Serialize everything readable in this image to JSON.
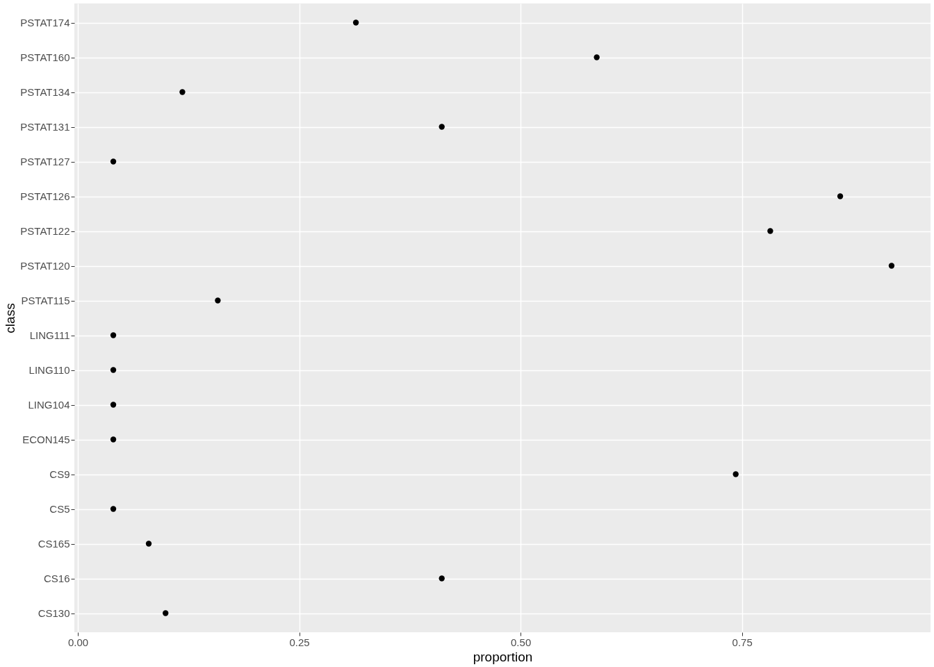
{
  "chart_data": {
    "type": "scatter",
    "xlabel": "proportion",
    "ylabel": "class",
    "categories": [
      "PSTAT174",
      "PSTAT160",
      "PSTAT134",
      "PSTAT131",
      "PSTAT127",
      "PSTAT126",
      "PSTAT122",
      "PSTAT120",
      "PSTAT115",
      "LING111",
      "LING110",
      "LING104",
      "ECON145",
      "CS9",
      "CS5",
      "CS165",
      "CS16",
      "CS130"
    ],
    "orientation": "horizontal",
    "values": [
      0.314,
      0.586,
      0.118,
      0.411,
      0.04,
      0.861,
      0.782,
      0.919,
      0.158,
      0.04,
      0.04,
      0.04,
      0.04,
      0.743,
      0.04,
      0.08,
      0.411,
      0.099
    ],
    "color": "#000000",
    "marker": "circle",
    "xlim": [
      -0.004,
      0.963
    ],
    "xticks": [
      {
        "value": 0,
        "label": "0.00"
      },
      {
        "value": 0.25,
        "label": "0.25"
      },
      {
        "value": 0.5,
        "label": "0.50"
      },
      {
        "value": 0.75,
        "label": "0.75"
      }
    ],
    "grid": true
  }
}
